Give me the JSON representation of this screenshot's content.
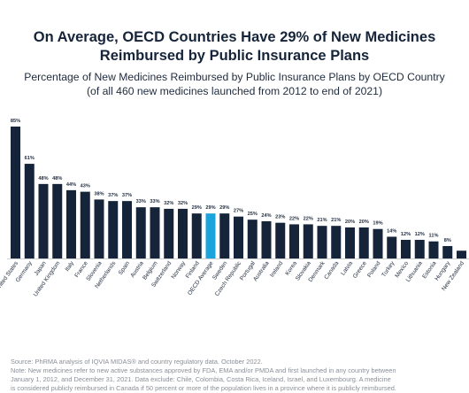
{
  "title": "On Average, OECD Countries Have 29% of New Medicines Reimbursed by Public Insurance Plans",
  "subtitle_line1": "Percentage of New Medicines Reimbursed by Public Insurance Plans by OECD Country",
  "subtitle_line2": "(of all 460 new medicines launched from 2012 to end of 2021)",
  "source_line1": "Source: PhRMA analysis of IQVIA MIDAS® and country regulatory data. October 2022.",
  "source_line2": "Note: New medicines refer to new active substances approved by FDA, EMA and/or PMDA and first launched in any country between",
  "source_line3": "January 1, 2012, and December 31, 2021. Data exclude: Chile, Colombia, Costa Rica, Iceland, Israel, and Luxembourg. A medicine",
  "source_line4": "is considered publicly reimbursed in Canada if 50 percent or more of the population lives in a province where it is publicly reimbursed.",
  "colors": {
    "bar": "#16243a",
    "highlight": "#1ba3dc",
    "title": "#16243a",
    "source": "#8a8f97"
  },
  "chart_data": {
    "type": "bar",
    "categories": [
      "United States",
      "Germany",
      "Japan",
      "United Kingdom",
      "Italy",
      "France",
      "Slovenia",
      "Netherlands",
      "Spain",
      "Austria",
      "Belgium",
      "Switzerland",
      "Norway",
      "Finland",
      "OECD Average",
      "Sweden",
      "Czech Republic",
      "Portugal",
      "Australia",
      "Ireland",
      "Korea",
      "Slovakia",
      "Denmark",
      "Canada",
      "Latvia",
      "Greece",
      "Poland",
      "Turkey",
      "Mexico",
      "Lithuania",
      "Estonia",
      "Hungary",
      "New Zealand"
    ],
    "values": [
      85,
      61,
      48,
      48,
      44,
      43,
      38,
      37,
      37,
      33,
      33,
      32,
      32,
      29,
      29,
      29,
      27,
      25,
      24,
      23,
      22,
      22,
      21,
      21,
      20,
      20,
      19,
      14,
      12,
      12,
      11,
      8,
      5
    ],
    "labels": [
      "85%",
      "61%",
      "48%",
      "48%",
      "44%",
      "43%",
      "38%",
      "37%",
      "37%",
      "33%",
      "33%",
      "32%",
      "32%",
      "29%",
      "29%",
      "29%",
      "27%",
      "25%",
      "24%",
      "23%",
      "22%",
      "22%",
      "21%",
      "21%",
      "20%",
      "20%",
      "19%",
      "14%",
      "12%",
      "12%",
      "11%",
      "8%",
      ""
    ],
    "highlight_category": "OECD Average",
    "ylim": [
      0,
      100
    ],
    "grid": false,
    "legend": "none"
  }
}
